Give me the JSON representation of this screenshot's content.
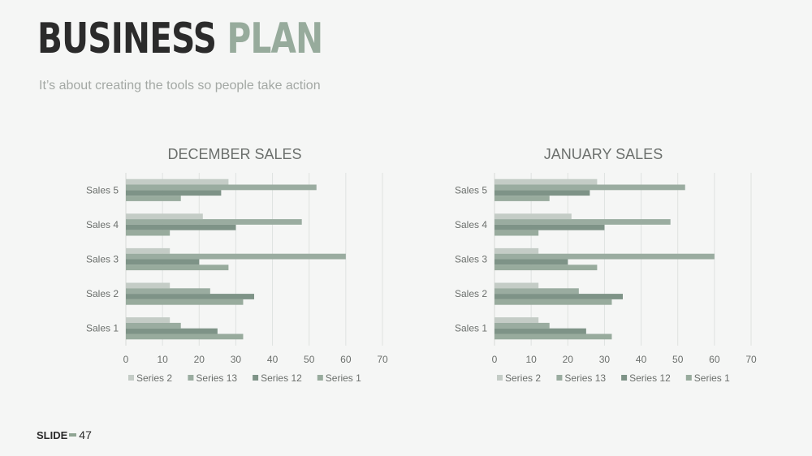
{
  "header": {
    "title_word1": "BUSINESS",
    "title_word2": "PLAN",
    "subtitle": "It’s about creating the tools so people take action"
  },
  "footer": {
    "label": "SLIDE",
    "page_number": "47"
  },
  "colors": {
    "Series 2": "#c4ccc6",
    "Series 13": "#9aaca0",
    "Series 12": "#7e9387",
    "Series 1": "#98ab9d",
    "title_dark": "#2b2b2b",
    "title_accent": "#97ab9c"
  },
  "chart_data": [
    {
      "type": "bar",
      "orientation": "horizontal",
      "title": "DECEMBER SALES",
      "categories": [
        "Sales 1",
        "Sales 2",
        "Sales 3",
        "Sales 4",
        "Sales 5"
      ],
      "series": [
        {
          "name": "Series 1",
          "values": [
            32,
            32,
            28,
            12,
            15
          ]
        },
        {
          "name": "Series 12",
          "values": [
            25,
            35,
            20,
            30,
            26
          ]
        },
        {
          "name": "Series 13",
          "values": [
            15,
            23,
            60,
            48,
            52
          ]
        },
        {
          "name": "Series 2",
          "values": [
            12,
            12,
            12,
            21,
            28
          ]
        }
      ],
      "xlim": [
        0,
        70
      ],
      "xticks": [
        0,
        10,
        20,
        30,
        40,
        50,
        60,
        70
      ],
      "grid": true,
      "legend_position": "bottom",
      "legend_order": [
        "Series 2",
        "Series 13",
        "Series 12",
        "Series 1"
      ]
    },
    {
      "type": "bar",
      "orientation": "horizontal",
      "title": "JANUARY SALES",
      "categories": [
        "Sales 1",
        "Sales 2",
        "Sales 3",
        "Sales 4",
        "Sales 5"
      ],
      "series": [
        {
          "name": "Series 1",
          "values": [
            32,
            32,
            28,
            12,
            15
          ]
        },
        {
          "name": "Series 12",
          "values": [
            25,
            35,
            20,
            30,
            26
          ]
        },
        {
          "name": "Series 13",
          "values": [
            15,
            23,
            60,
            48,
            52
          ]
        },
        {
          "name": "Series 2",
          "values": [
            12,
            12,
            12,
            21,
            28
          ]
        }
      ],
      "xlim": [
        0,
        70
      ],
      "xticks": [
        0,
        10,
        20,
        30,
        40,
        50,
        60,
        70
      ],
      "grid": true,
      "legend_position": "bottom",
      "legend_order": [
        "Series 2",
        "Series 13",
        "Series 12",
        "Series 1"
      ]
    }
  ]
}
